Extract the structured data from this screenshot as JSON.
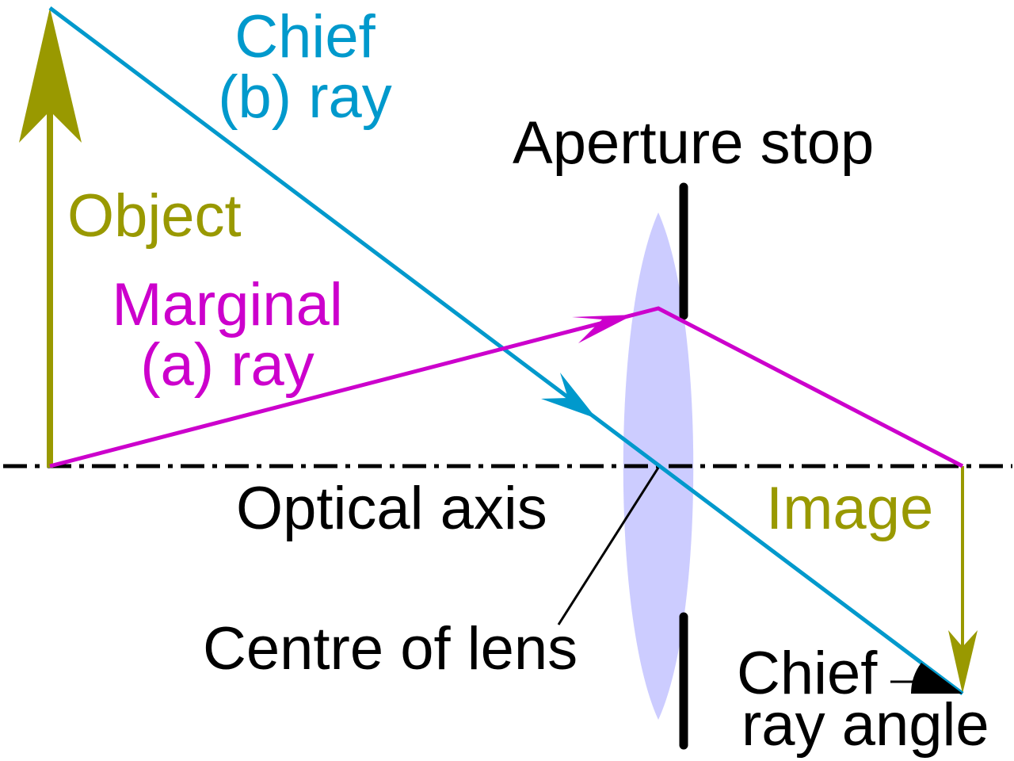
{
  "colors": {
    "object": "#999900",
    "chief_ray": "#0099cc",
    "marginal_ray": "#cc00cc",
    "lens": "#ccccff",
    "stop": "#000000",
    "axis": "#000000",
    "background": "#ffffff"
  },
  "labels": {
    "chief_line1": "Chief",
    "chief_line2": "(b) ray",
    "aperture_stop": "Aperture stop",
    "object": "Object",
    "marginal_line1": "Marginal",
    "marginal_line2": "(a) ray",
    "optical_axis": "Optical axis",
    "image": "Image",
    "centre_of_lens": "Centre of lens",
    "chief_angle_line1": "Chief",
    "chief_angle_line2": "ray angle"
  }
}
